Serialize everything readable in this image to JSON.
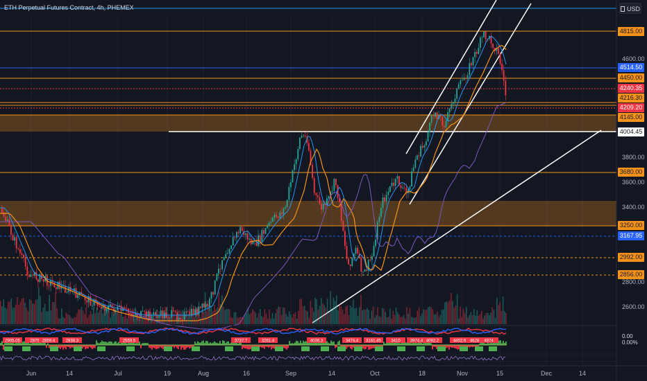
{
  "title": "ETH Perpetual Futures Contract, 4h, PHEMEX",
  "currency": "USD",
  "colors": {
    "background": "#131722",
    "orange": "#f7931a",
    "red": "#f23645",
    "blue_label": "#2962ff",
    "green": "#26a69a",
    "white": "#ffffff"
  },
  "price_labels": [
    {
      "id": "p4815",
      "text": "4815.00",
      "kind": "orange"
    },
    {
      "id": "p4514",
      "text": "4514.50",
      "kind": "blue"
    },
    {
      "id": "p4450",
      "text": "4450.00",
      "kind": "orange"
    },
    {
      "id": "p4240",
      "text": "4240.35",
      "kind": "red"
    },
    {
      "id": "p4216",
      "text": "4216.30",
      "kind": "orange"
    },
    {
      "id": "p4209",
      "text": "4209.20",
      "kind": "red"
    },
    {
      "id": "p4145",
      "text": "4145.00",
      "kind": "orange"
    },
    {
      "id": "p4004",
      "text": "4004.45",
      "kind": "white"
    },
    {
      "id": "p3680",
      "text": "3680.00",
      "kind": "orange"
    },
    {
      "id": "p3250",
      "text": "3250.00",
      "kind": "orange"
    },
    {
      "id": "p3167",
      "text": "3167.95",
      "kind": "blue"
    },
    {
      "id": "p2992",
      "text": "2992.00",
      "kind": "orange"
    },
    {
      "id": "p2856",
      "text": "2856.00",
      "kind": "orange"
    }
  ],
  "price_ticks": [
    "4600.00",
    "3800.00",
    "3600.00",
    "3400.00",
    "2800.00",
    "2600.00"
  ],
  "indicator_values": [
    "0.00",
    "0.00%"
  ],
  "x_ticks": [
    "Jun",
    "14",
    "Jul",
    "19",
    "Aug",
    "16",
    "Sep",
    "14",
    "Oct",
    "18",
    "Nov",
    "15",
    "Dec",
    "14"
  ],
  "signal_labels": [
    "2905.05",
    "2875",
    "2859.4",
    "2838.3",
    "2559.5",
    "3737.7",
    "3261.4",
    "4036.3",
    "3474.4",
    "3161.45",
    "3410",
    "3974.4",
    "4092.2",
    "4452.6",
    "4628.4",
    "4874"
  ]
}
